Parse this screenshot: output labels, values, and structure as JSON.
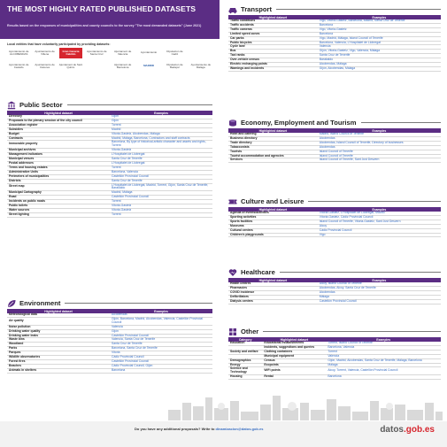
{
  "header": {
    "title": "THE MOST HIGHLY RATED PUBLISHED DATASETS",
    "subtitle": "Results based on the responses of municipalities and county councils to the survey \"The most demanded datasets\" (June 2021)"
  },
  "entities_label": "Local entities that have voluntarily participated by providing datasets:",
  "logos": [
    "Ayuntamiento de ALCOBENDAS",
    "Ayuntamiento de Villena",
    "Gran Canaria Cabildo",
    "Ayuntamiento de Santa Cruz",
    "Ajuntament de Valencia",
    "Ayuntamiento",
    "Diputacion de Cadiz",
    "",
    "Ayuntamiento de Castello",
    "Ayuntamiento de Cáceres",
    "Ajuntament de Sant Quirze",
    "",
    "Ajuntament de Barcelona",
    "MADRID",
    "Diputacion de Badajoz",
    "Ayuntamiento de Malaga"
  ],
  "sections": {
    "public": {
      "title": "Public Sector",
      "col1": "Highlighted dataset",
      "col2": "Examples",
      "icon": "bank-icon",
      "rows": [
        [
          "Directory",
          "Gijón"
        ],
        [
          "Proposals to the plenary session of the city council",
          "Gijón"
        ],
        [
          "Association register",
          "Torrent"
        ],
        [
          "Subsidies",
          "Madrid"
        ],
        [
          "Budget",
          "Vitoria-Gasteiz, Alcobendas, Málaga"
        ],
        [
          "Contracts",
          "Madrid, Málaga, Barcelona, Contractors and staff contracts"
        ],
        [
          "Immovable property",
          "Barcelona, By type of historical-artistic character and assets and rights, Torrent"
        ],
        [
          "Municipal archives",
          "Vitoria-Gasteiz"
        ],
        [
          "Management indicators",
          "L'Hospitalet de Llobregat"
        ],
        [
          "Municipal venues",
          "Santa Cruz de Tenerife"
        ],
        [
          "Postal addresses",
          "L'Hospitalet de Llobregat"
        ],
        [
          "Terms and housing estates",
          "Torrent"
        ],
        [
          "Administrative Units",
          "Barcelona, Valencia"
        ],
        [
          "Perimeters of municipalities",
          "Castellón Provincial Council"
        ],
        [
          "Districts",
          "Santa Cruz de Tenerife"
        ],
        [
          "Street map",
          "L'Hospitalet de Llobregat, Madrid, Torrent, Gijón, Santa Cruz de Tenerife, Barakaldo"
        ],
        [
          "Municipal Cartography",
          "Madrid, Málaga"
        ],
        [
          "Road",
          "Castellón Provincial Council"
        ],
        [
          "Incidents on public roads",
          "Torrent"
        ],
        [
          "Public toilets",
          "Vitoria-Gasteiz"
        ],
        [
          "Water sources",
          "Vitoria-Gasteiz"
        ],
        [
          "Street lighting",
          "Torrent"
        ]
      ]
    },
    "environment": {
      "title": "Environment",
      "col1": "Highlighted dataset",
      "col2": "Examples",
      "icon": "leaf-icon",
      "rows": [
        [
          "Meteorological data",
          "Alcobendas"
        ],
        [
          "Air quality",
          "Gijón, Barcelona, Madrid, Alcobendas, Valencia, Castellón Provincial Council"
        ],
        [
          "Noise pollution",
          "Valencia"
        ],
        [
          "Drinking water quality",
          "Gijón"
        ],
        [
          "Drinking water leaks",
          "Castellón Provincial Council"
        ],
        [
          "Waste bins",
          "Valencia, Santa Cruz de Tenerife"
        ],
        [
          "Woodland",
          "Santa Cruz de Tenerife"
        ],
        [
          "Parks",
          "Barcelona, Santa Cruz de Tenerife"
        ],
        [
          "Parques",
          "Vitoria"
        ],
        [
          "Wildlife observatories",
          "Cádiz Provincial Council"
        ],
        [
          "Forest fires",
          "Castellón Provincial Council"
        ],
        [
          "Beaches",
          "Cádiz Provincial Council, Gijón"
        ],
        [
          "Animals in shelters",
          "Barcelona"
        ]
      ]
    },
    "transport": {
      "title": "Transport",
      "col1": "Highlighted dataset",
      "col2": "Examples",
      "icon": "car-icon",
      "rows": [
        [
          "Traffic conditions",
          "Vigo, Vitoria-Gasteiz, Barcelona, Madrid, Santa Cruz de Tenerife"
        ],
        [
          "Traffic accidents",
          "Barcelona"
        ],
        [
          "Traffic cameras",
          "Vigo, Vitoria-Gasteiz"
        ],
        [
          "Limited speed zones",
          "Barcelona"
        ],
        [
          "Car parks",
          "Vigo, Madrid, Málaga, Island Council of Tenerife"
        ],
        [
          "Public bicycles",
          "Barcelona, Valencia, L'Hospitalet de Llobregat"
        ],
        [
          "Cycle lane",
          "Valencia"
        ],
        [
          "Bus",
          "Gijón, Vitoria-Gasteiz, Vigo, Valencia, Málaga"
        ],
        [
          "Taxi ranks",
          "Santa Cruz de Tenerife"
        ],
        [
          "Over-vehicle census",
          "Barakaldo"
        ],
        [
          "Electric recharging points",
          "Alcobendas, Málaga"
        ],
        [
          "Warnings and incidents",
          "Gijón, Alcobendas, Málaga"
        ]
      ]
    },
    "economy": {
      "title": "Economy, Employment and Tourism",
      "col1": "Highlighted dataset",
      "col2": "Examples",
      "icon": "coins-icon",
      "rows": [
        [
          "Hotel and catering",
          "Madrid, Island Council of Tenerife"
        ],
        [
          "Business directory",
          "Alcobendas"
        ],
        [
          "Trade directory",
          "Alcobendas, Island Council of Tenerife, Directory of businesses"
        ],
        [
          "Tobacconists",
          "Alcobendas"
        ],
        [
          "Tourists",
          "Island Council of Tenerife"
        ],
        [
          "Tourist accommodation and agencies",
          "Island Council of Tenerife"
        ],
        [
          "Services",
          "Island Council of Tenerife, Sant Just Desvern"
        ]
      ]
    },
    "culture": {
      "title": "Culture and Leisure",
      "col1": "Highlighted dataset",
      "col2": "Examples",
      "icon": "ticket-icon",
      "rows": [
        [
          "Agenda of events/activities",
          "Vitoria-Gasteiz, L'Hospitalet de Llobregat, Madrid"
        ],
        [
          "Sporting activities",
          "Vitoria-Gasteiz, Cádiz Provincial Council"
        ],
        [
          "Sports facilities",
          "Island Council of Tenerife, Vitoria-Gasteiz, Sant Just Desvern"
        ],
        [
          "Museums",
          "Alcoy"
        ],
        [
          "Cultural centres",
          "Cádiz Provincial Council"
        ],
        [
          "Children's playgrounds",
          "Vigo"
        ]
      ]
    },
    "healthcare": {
      "title": "Healthcare",
      "col1": "Highlighted dataset",
      "col2": "Examples",
      "icon": "heart-icon",
      "rows": [
        [
          "Health centres",
          "Alcoy, Island Council of Tenerife"
        ],
        [
          "Pharmacies",
          "Alcobendas, Alcoy, Santa Cruz de Tenerife"
        ],
        [
          "COVID incidence",
          "Alcobendas"
        ],
        [
          "Defibrillators",
          "Málaga"
        ],
        [
          "Dialysis centres",
          "Castellón Provincial Council"
        ]
      ]
    },
    "other": {
      "title": "Other",
      "col0": "Category",
      "col1": "Highlighted dataset",
      "col2": "Examples",
      "icon": "grid-icon",
      "rows": [
        [
          "Education",
          "Educational establishments",
          "Torrent, Island Council of Tenerife"
        ],
        [
          "",
          "Incidents, suggestions and queries",
          "Barcelona, Valencia"
        ],
        [
          "Society and welfare",
          "Clothing containers",
          "Torrent"
        ],
        [
          "",
          "Municipal equipment",
          "Valencia"
        ],
        [
          "Demographics",
          "Census",
          "Gijón, Madrid, Alcobendas, Santa Cruz de Tenerife, Málaga, Barcelona"
        ],
        [
          "Energy",
          "Ecopoints",
          "Málaga"
        ],
        [
          "Science and Technology",
          "WiFi points",
          "Alcoy, Torrent, Valencia, Castellón Provincial Council"
        ],
        [
          "Housing",
          "Rental",
          "Barcelona"
        ]
      ]
    }
  },
  "footer": {
    "question": "Do you have any additional proposals? Write to",
    "email": "dinamizacion@datos.gob.es",
    "brand": "datos",
    "tld": ".gob.es"
  },
  "colors": {
    "purple": "#5b2d84",
    "link": "#3a6fc3",
    "red": "#d6262e"
  }
}
